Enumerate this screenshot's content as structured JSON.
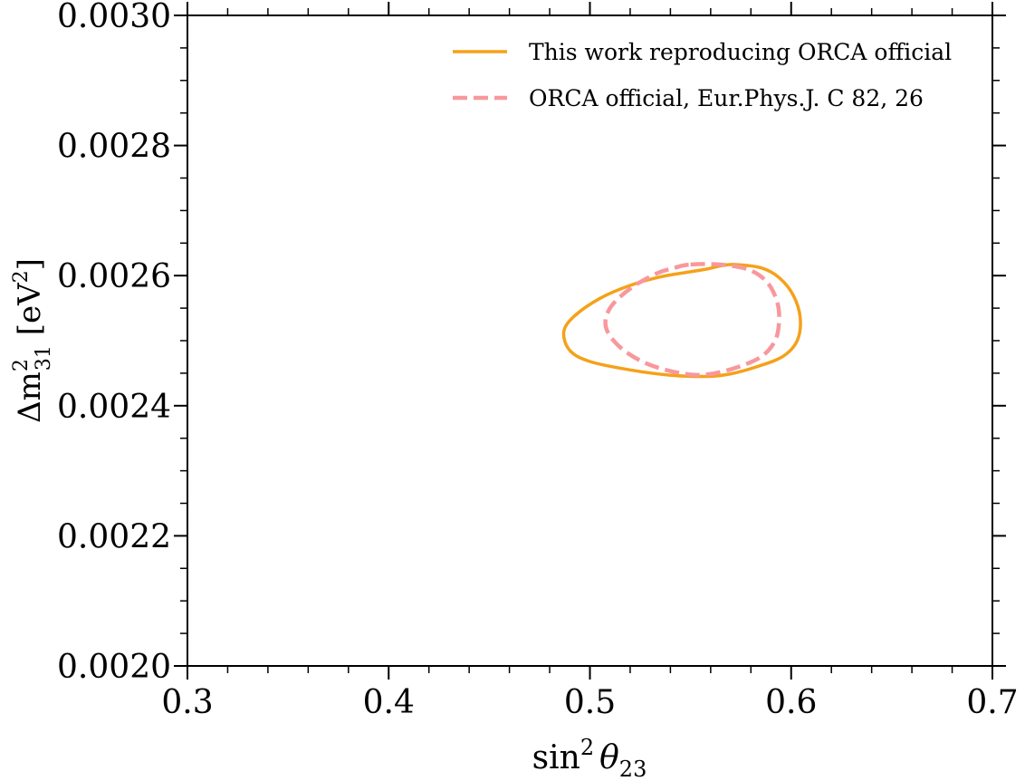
{
  "chart_data": {
    "type": "line",
    "xlabel": {
      "base": "sin",
      "sup": "2",
      "symbol": "θ",
      "sub": "23"
    },
    "ylabel": {
      "prefix": "Δm",
      "sup": "2",
      "sub": "31",
      "unit_open": " [eV",
      "unit_sup": "2",
      "unit_close": "]"
    },
    "xlim": [
      0.3,
      0.7
    ],
    "ylim": [
      0.002,
      0.003
    ],
    "x_ticks": [
      {
        "value": 0.3,
        "label": "0.3"
      },
      {
        "value": 0.4,
        "label": "0.4"
      },
      {
        "value": 0.5,
        "label": "0.5"
      },
      {
        "value": 0.6,
        "label": "0.6"
      },
      {
        "value": 0.7,
        "label": "0.7"
      }
    ],
    "y_ticks": [
      {
        "value": 0.002,
        "label": "0.0020"
      },
      {
        "value": 0.0022,
        "label": "0.0022"
      },
      {
        "value": 0.0024,
        "label": "0.0024"
      },
      {
        "value": 0.0026,
        "label": "0.0026"
      },
      {
        "value": 0.0028,
        "label": "0.0028"
      },
      {
        "value": 0.003,
        "label": "0.0030"
      }
    ],
    "x_minor_step": 0.02,
    "y_minor_step": 5e-05,
    "grid": false,
    "legend_position": "top-right",
    "series": [
      {
        "name": "This work reproducing ORCA official",
        "color": "#f5a11a",
        "style": "solid",
        "closed": true,
        "points": [
          [
            0.572,
            0.002617
          ],
          [
            0.585,
            0.002612
          ],
          [
            0.594,
            0.002597
          ],
          [
            0.601,
            0.00257
          ],
          [
            0.6045,
            0.002535
          ],
          [
            0.603,
            0.0025
          ],
          [
            0.596,
            0.002476
          ],
          [
            0.584,
            0.002461
          ],
          [
            0.57,
            0.002449
          ],
          [
            0.558,
            0.002445
          ],
          [
            0.54,
            0.002447
          ],
          [
            0.52,
            0.002455
          ],
          [
            0.5,
            0.002468
          ],
          [
            0.49,
            0.002485
          ],
          [
            0.487,
            0.002513
          ],
          [
            0.492,
            0.002537
          ],
          [
            0.505,
            0.002565
          ],
          [
            0.52,
            0.002585
          ],
          [
            0.535,
            0.002598
          ],
          [
            0.548,
            0.002605
          ],
          [
            0.558,
            0.00261
          ],
          [
            0.565,
            0.002615
          ]
        ]
      },
      {
        "name": "ORCA official, Eur.Phys.J. C 82, 26",
        "color": "#f8989c",
        "style": "dashed",
        "closed": true,
        "points": [
          [
            0.55,
            0.002617
          ],
          [
            0.565,
            0.002617
          ],
          [
            0.579,
            0.002609
          ],
          [
            0.588,
            0.00259
          ],
          [
            0.593,
            0.00256
          ],
          [
            0.594,
            0.00253
          ],
          [
            0.592,
            0.0025
          ],
          [
            0.585,
            0.002475
          ],
          [
            0.572,
            0.002458
          ],
          [
            0.558,
            0.002448
          ],
          [
            0.545,
            0.00245
          ],
          [
            0.528,
            0.002465
          ],
          [
            0.515,
            0.00249
          ],
          [
            0.508,
            0.00252
          ],
          [
            0.51,
            0.00255
          ],
          [
            0.52,
            0.00258
          ],
          [
            0.533,
            0.002603
          ],
          [
            0.542,
            0.002612
          ]
        ]
      }
    ]
  }
}
